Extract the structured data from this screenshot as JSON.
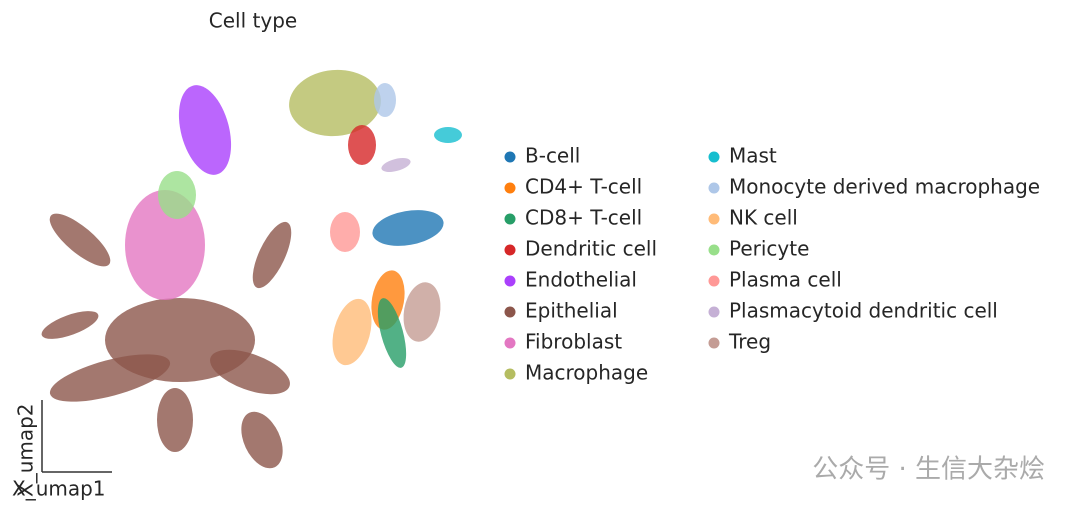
{
  "chart_data": {
    "type": "scatter",
    "title": "Cell type",
    "xlabel": "X_umap1",
    "ylabel": "X_umap2",
    "series": [
      {
        "name": "B-cell",
        "color": "#1f77b4"
      },
      {
        "name": "CD4+ T-cell",
        "color": "#ff7f0e"
      },
      {
        "name": "CD8+ T-cell",
        "color": "#279e68"
      },
      {
        "name": "Dendritic cell",
        "color": "#d62728"
      },
      {
        "name": "Endothelial",
        "color": "#aa40fc"
      },
      {
        "name": "Epithelial",
        "color": "#8c564b"
      },
      {
        "name": "Fibroblast",
        "color": "#e377c2"
      },
      {
        "name": "Macrophage",
        "color": "#b5bd61"
      },
      {
        "name": "Mast",
        "color": "#17becf"
      },
      {
        "name": "Monocyte derived macrophage",
        "color": "#aec7e8"
      },
      {
        "name": "NK cell",
        "color": "#ffbb78"
      },
      {
        "name": "Pericyte",
        "color": "#98df8a"
      },
      {
        "name": "Plasma cell",
        "color": "#ff9896"
      },
      {
        "name": "Plasmacytoid dendritic cell",
        "color": "#c5b0d5"
      },
      {
        "name": "Treg",
        "color": "#c49c94"
      }
    ]
  },
  "watermark": "公众号 · 生信大杂烩"
}
